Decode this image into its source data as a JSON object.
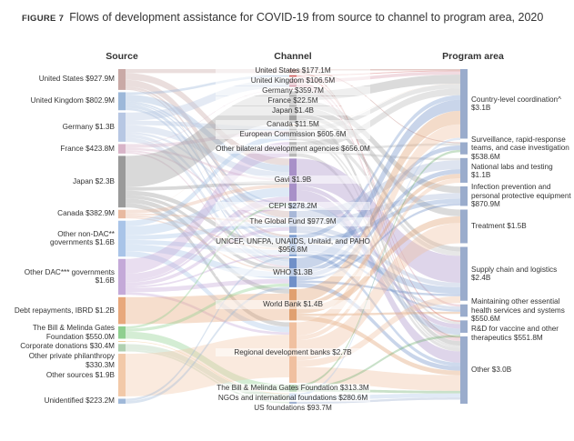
{
  "chart_data": {
    "type": "sankey",
    "figure_label": "FIGURE 7",
    "title": "Flows of development assistance for COVID-19 from source to channel to program area, 2020",
    "column_titles": [
      "Source",
      "Channel",
      "Program area"
    ],
    "sources": [
      {
        "name": "United States",
        "value": 927.9,
        "value_label": "$927.9M",
        "color": "#c9a9a6",
        "flows": [
          177,
          null,
          null,
          null,
          null,
          null,
          null,
          null,
          300,
          null,
          300,
          100,
          50,
          null,
          null,
          null,
          null,
          null
        ]
      },
      {
        "name": "United Kingdom",
        "value": 802.9,
        "value_label": "$802.9M",
        "color": "#9db8d9",
        "flows": [
          null,
          106,
          null,
          null,
          null,
          null,
          null,
          null,
          300,
          80,
          60,
          150,
          100,
          null,
          null,
          null,
          null,
          null
        ]
      },
      {
        "name": "Germany",
        "value": 1300,
        "value_label": "$1.3B",
        "color": "#b7c7e3",
        "flows": [
          null,
          null,
          360,
          null,
          null,
          null,
          200,
          null,
          300,
          100,
          null,
          150,
          200,
          null,
          null,
          null,
          null,
          null
        ]
      },
      {
        "name": "France",
        "value": 423.8,
        "value_label": "$423.8M",
        "color": "#d8b4c8",
        "flows": [
          null,
          null,
          null,
          22,
          null,
          null,
          150,
          null,
          100,
          null,
          80,
          null,
          70,
          null,
          null,
          null,
          null,
          null
        ]
      },
      {
        "name": "Japan",
        "value": 2300,
        "value_label": "$2.3B",
        "color": "#9a9a9a",
        "flows": [
          null,
          null,
          null,
          null,
          1400,
          null,
          null,
          null,
          150,
          null,
          null,
          200,
          150,
          200,
          200,
          null,
          null,
          null
        ]
      },
      {
        "name": "Canada",
        "value": 382.9,
        "value_label": "$382.9M",
        "color": "#e8b9a0",
        "flows": [
          null,
          null,
          null,
          null,
          null,
          11,
          null,
          null,
          150,
          null,
          80,
          80,
          60,
          null,
          null,
          null,
          null,
          null
        ]
      },
      {
        "name": "Other non-DAC** governments",
        "value": 1600,
        "value_label": "$1.6B",
        "color": "#a9c4e8",
        "flows": [
          null,
          null,
          null,
          null,
          null,
          null,
          255,
          null,
          400,
          null,
          200,
          200,
          300,
          null,
          245,
          null,
          null,
          null
        ]
      },
      {
        "name": "Other DAC*** governments",
        "value": 1600,
        "value_label": "$1.6B",
        "color": "#c4a9d8",
        "flows": [
          null,
          null,
          null,
          null,
          null,
          null,
          null,
          656,
          300,
          98,
          160,
          76,
          200,
          null,
          110,
          null,
          null,
          null
        ]
      },
      {
        "name": "Debt repayments, IBRD",
        "value": 1200,
        "value_label": "$1.2B",
        "color": "#e8a87c",
        "flows": [
          null,
          null,
          null,
          null,
          null,
          null,
          null,
          null,
          null,
          null,
          null,
          null,
          null,
          1200,
          null,
          null,
          null,
          null
        ]
      },
      {
        "name": "The Bill & Melinda Gates Foundation",
        "value": 550.0,
        "value_label": "$550.0M",
        "color": "#8fcf8f",
        "flows": [
          null,
          null,
          null,
          null,
          null,
          null,
          null,
          null,
          100,
          null,
          null,
          null,
          137,
          null,
          null,
          313,
          null,
          null
        ]
      },
      {
        "name": "Corporate donations",
        "value": 30.4,
        "value_label": "$30.4M",
        "color": "#f0c080",
        "flows": [
          null,
          null,
          null,
          null,
          null,
          null,
          null,
          null,
          null,
          null,
          null,
          null,
          null,
          null,
          null,
          null,
          30,
          null
        ]
      },
      {
        "name": "Other private philanthropy",
        "value": 330.3,
        "value_label": "$330.3M",
        "color": "#b0d0b0",
        "flows": [
          null,
          null,
          null,
          null,
          null,
          null,
          null,
          null,
          null,
          null,
          null,
          null,
          null,
          null,
          null,
          null,
          250,
          80
        ]
      },
      {
        "name": "Other sources",
        "value": 1900,
        "value_label": "$1.9B",
        "color": "#f2c9a8",
        "flows": [
          null,
          null,
          null,
          null,
          null,
          null,
          null,
          null,
          null,
          null,
          null,
          null,
          null,
          null,
          1900,
          null,
          null,
          null
        ]
      },
      {
        "name": "Unidentified",
        "value": 223.2,
        "value_label": "$223.2M",
        "color": "#9fb8d8",
        "flows": [
          null,
          null,
          null,
          null,
          null,
          null,
          null,
          null,
          null,
          null,
          null,
          100,
          120,
          null,
          null,
          null,
          null,
          null
        ]
      }
    ],
    "channels": [
      {
        "name": "United States",
        "value": 177.1,
        "value_label": "$177.1M",
        "color": "#b5706a",
        "flows": [
          60,
          40,
          null,
          null,
          null,
          null,
          null,
          null,
          77
        ]
      },
      {
        "name": "United Kingdom",
        "value": 106.5,
        "value_label": "$106.5M",
        "color": "#d06060",
        "flows": [
          40,
          null,
          null,
          null,
          null,
          null,
          null,
          66,
          null
        ]
      },
      {
        "name": "Germany",
        "value": 359.7,
        "value_label": "$359.7M",
        "color": "#d9a0b0",
        "flows": [
          150,
          null,
          null,
          null,
          null,
          null,
          100,
          null,
          110
        ]
      },
      {
        "name": "France",
        "value": 22.5,
        "value_label": "$22.5M",
        "color": "#e0a0b8",
        "flows": [
          null,
          null,
          null,
          null,
          null,
          null,
          null,
          null,
          22
        ]
      },
      {
        "name": "Japan",
        "value": 1400,
        "value_label": "$1.4B",
        "color": "#a0a0a0",
        "flows": [
          400,
          null,
          null,
          300,
          300,
          200,
          null,
          null,
          200
        ]
      },
      {
        "name": "Canada",
        "value": 11.5,
        "value_label": "$11.5M",
        "color": "#d9b090",
        "flows": [
          11,
          null,
          null,
          null,
          null,
          null,
          null,
          null,
          null
        ]
      },
      {
        "name": "European Commission",
        "value": 605.6,
        "value_label": "$605.6M",
        "color": "#c0c0c0",
        "flows": [
          200,
          null,
          null,
          null,
          null,
          200,
          null,
          100,
          106
        ]
      },
      {
        "name": "Other bilateral development agencies",
        "value": 656.0,
        "value_label": "$656.0M",
        "color": "#b8b8b8",
        "flows": [
          300,
          100,
          100,
          null,
          null,
          null,
          null,
          null,
          156
        ]
      },
      {
        "name": "Gavi",
        "value": 1900,
        "value_label": "$1.9B",
        "color": "#a890c8",
        "flows": [
          null,
          null,
          null,
          null,
          null,
          1200,
          null,
          200,
          500
        ]
      },
      {
        "name": "CEPI",
        "value": 278.2,
        "value_label": "$278.2M",
        "color": "#90a8d0",
        "flows": [
          null,
          null,
          null,
          null,
          null,
          null,
          null,
          278,
          null
        ]
      },
      {
        "name": "The Global Fund",
        "value": 977.9,
        "value_label": "$977.9M",
        "color": "#a8b8d8",
        "flows": [
          null,
          null,
          400,
          250,
          null,
          200,
          128,
          null,
          null
        ]
      },
      {
        "name": "UNICEF, UNFPA, UNAIDS, Unitaid, and PAHO",
        "value": 956.8,
        "value_label": "$956.8M",
        "color": "#7f9fd0",
        "flows": [
          200,
          null,
          null,
          200,
          null,
          300,
          100,
          null,
          157
        ]
      },
      {
        "name": "WHO",
        "value": 1300,
        "value_label": "$1.3B",
        "color": "#7090c8",
        "flows": [
          500,
          200,
          200,
          100,
          null,
          100,
          null,
          null,
          200
        ]
      },
      {
        "name": "World Bank",
        "value": 1400,
        "value_label": "$1.4B",
        "color": "#e0a070",
        "flows": [
          600,
          null,
          200,
          null,
          300,
          null,
          100,
          null,
          200
        ]
      },
      {
        "name": "Regional development banks",
        "value": 2700,
        "value_label": "$2.7B",
        "color": "#f0c0a0",
        "flows": [
          600,
          null,
          200,
          null,
          900,
          300,
          null,
          null,
          700
        ]
      },
      {
        "name": "The Bill & Melinda Gates Foundation",
        "value": 313.3,
        "value_label": "$313.3M",
        "color": "#70b070",
        "flows": [
          null,
          100,
          null,
          null,
          null,
          null,
          null,
          100,
          113
        ]
      },
      {
        "name": "NGOs and international foundations",
        "value": 280.6,
        "value_label": "$280.6M",
        "color": "#b0c8e8",
        "flows": [
          100,
          null,
          null,
          null,
          null,
          null,
          null,
          null,
          181
        ]
      },
      {
        "name": "US foundations",
        "value": 93.7,
        "value_label": "$93.7M",
        "color": "#9fb0d0",
        "flows": [
          null,
          null,
          null,
          null,
          null,
          null,
          null,
          null,
          94
        ]
      }
    ],
    "program_areas": [
      {
        "name": "Country-level coordination^",
        "value": 3100,
        "value_label": "$3.1B",
        "color": "#9aaccc"
      },
      {
        "name": "Surveillance, rapid-response teams, and case investigation",
        "value": 538.6,
        "value_label": "$538.6M",
        "color": "#9aaccc"
      },
      {
        "name": "National labs and testing",
        "value": 1100,
        "value_label": "$1.1B",
        "color": "#9aaccc"
      },
      {
        "name": "Infection prevention and personal protective equipment",
        "value": 870.9,
        "value_label": "$870.9M",
        "color": "#9aaccc"
      },
      {
        "name": "Treatment",
        "value": 1500,
        "value_label": "$1.5B",
        "color": "#9aaccc"
      },
      {
        "name": "Supply chain and logistics",
        "value": 2400,
        "value_label": "$2.4B",
        "color": "#9aaccc"
      },
      {
        "name": "Maintaining other essential health services and systems",
        "value": 550.6,
        "value_label": "$550.6M",
        "color": "#9aaccc"
      },
      {
        "name": "R&D for vaccine and other therapeutics",
        "value": 551.8,
        "value_label": "$551.8M",
        "color": "#9aaccc"
      },
      {
        "name": "Other",
        "value": 3000,
        "value_label": "$3.0B",
        "color": "#9aaccc"
      }
    ]
  }
}
